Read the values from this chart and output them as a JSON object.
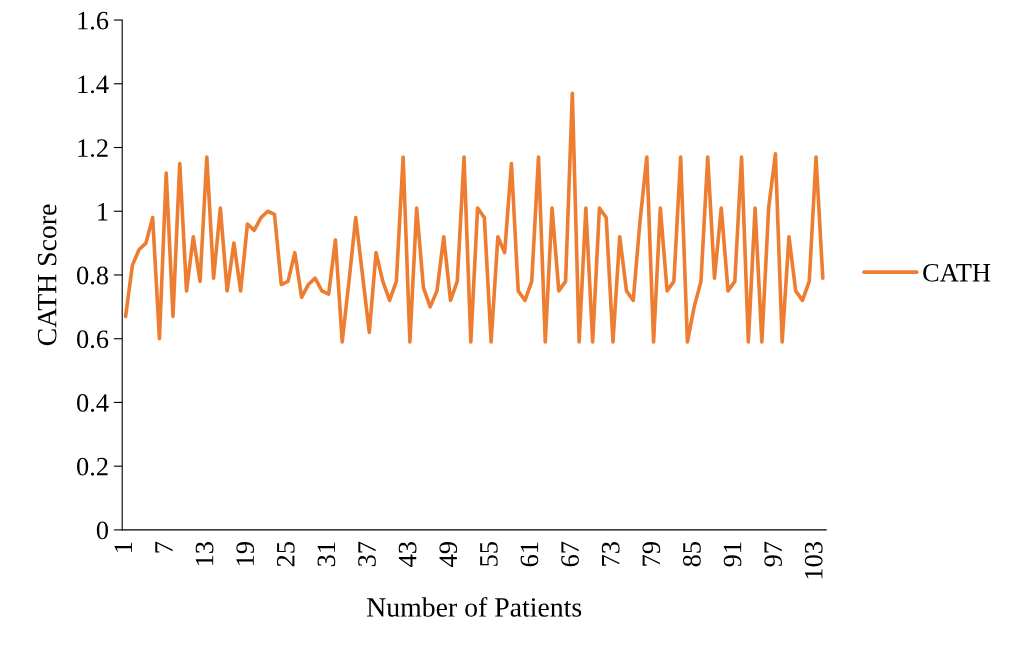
{
  "chart_data": {
    "type": "line",
    "xlabel": "Number of Patients",
    "ylabel": "CATH Score",
    "categories": [
      "1",
      null,
      null,
      null,
      null,
      null,
      "7",
      null,
      null,
      null,
      null,
      null,
      "13",
      null,
      null,
      null,
      null,
      null,
      "19",
      null,
      null,
      null,
      null,
      null,
      "25",
      null,
      null,
      null,
      null,
      null,
      "31",
      null,
      null,
      null,
      null,
      null,
      "37",
      null,
      null,
      null,
      null,
      null,
      "43",
      null,
      null,
      null,
      null,
      null,
      "49",
      null,
      null,
      null,
      null,
      null,
      "55",
      null,
      null,
      null,
      null,
      null,
      "61",
      null,
      null,
      null,
      null,
      null,
      "67",
      null,
      null,
      null,
      null,
      null,
      "73",
      null,
      null,
      null,
      null,
      null,
      "79",
      null,
      null,
      null,
      null,
      null,
      "85",
      null,
      null,
      null,
      null,
      null,
      "91",
      null,
      null,
      null,
      null,
      null,
      "97",
      null,
      null,
      null,
      null,
      null,
      "103",
      null
    ],
    "series": [
      {
        "name": "CATH",
        "color": "#ed7d31",
        "values": [
          0.67,
          0.83,
          0.88,
          0.9,
          0.98,
          0.6,
          1.12,
          0.67,
          1.15,
          0.75,
          0.92,
          0.78,
          1.17,
          0.79,
          1.01,
          0.75,
          0.9,
          0.75,
          0.96,
          0.94,
          0.98,
          1.0,
          0.99,
          0.77,
          0.78,
          0.87,
          0.73,
          0.77,
          0.79,
          0.75,
          0.74,
          0.91,
          0.59,
          0.78,
          0.98,
          0.8,
          0.62,
          0.87,
          0.78,
          0.72,
          0.78,
          1.17,
          0.59,
          1.01,
          0.76,
          0.7,
          0.75,
          0.92,
          0.72,
          0.78,
          1.17,
          0.59,
          1.01,
          0.98,
          0.59,
          0.92,
          0.87,
          1.15,
          0.75,
          0.72,
          0.78,
          1.17,
          0.59,
          1.01,
          0.75,
          0.78,
          1.37,
          0.59,
          1.01,
          0.59,
          1.01,
          0.98,
          0.59,
          0.92,
          0.75,
          0.72,
          0.97,
          1.17,
          0.59,
          1.01,
          0.75,
          0.78,
          1.17,
          0.59,
          0.7,
          0.78,
          1.17,
          0.79,
          1.01,
          0.75,
          0.78,
          1.17,
          0.59,
          1.01,
          0.59,
          1.01,
          1.18,
          0.59,
          0.92,
          0.75,
          0.72,
          0.78,
          1.17,
          0.79
        ]
      }
    ],
    "ylim": [
      0,
      1.6
    ],
    "yticks": [
      0,
      0.2,
      0.4,
      0.6,
      0.8,
      1,
      1.2,
      1.4,
      1.6
    ],
    "legend": "right",
    "marker": "none",
    "line_style": "solid"
  }
}
